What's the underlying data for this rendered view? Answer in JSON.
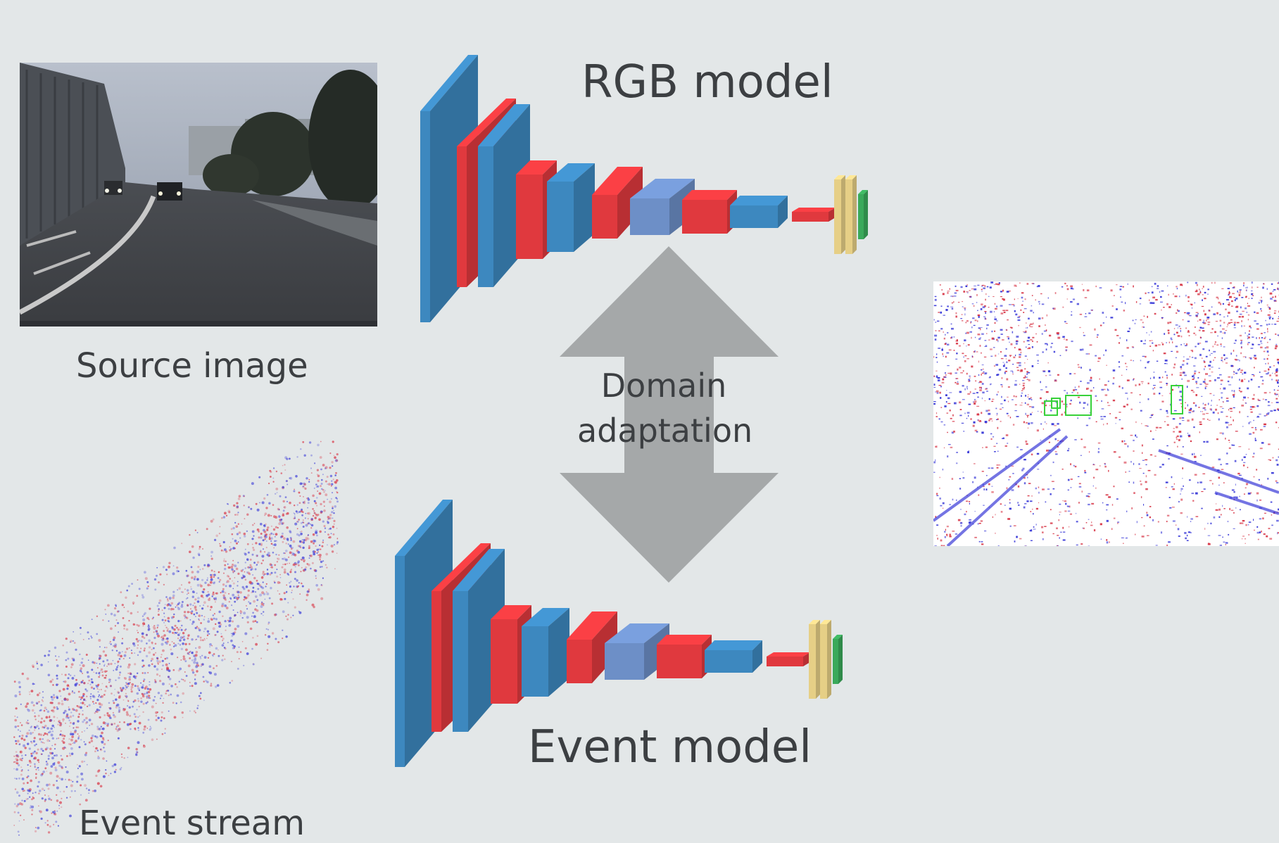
{
  "labels": {
    "rgb_model": "RGB model",
    "event_model": "Event model",
    "source_image": "Source image",
    "event_stream": "Event stream",
    "domain_adaptation": "Domain adaptation"
  },
  "colors": {
    "background": "#e3e7e8",
    "layer_blue": "#3d88bf",
    "layer_red": "#e0393e",
    "layer_light_blue": "#6d8fc7",
    "layer_yellow": "#e6cf86",
    "layer_green": "#3aa95a",
    "arrow_gray": "#a5a8a9",
    "detection_green": "#38d13a",
    "event_red": "#d83a4a",
    "event_blue": "#3a3ad8"
  }
}
